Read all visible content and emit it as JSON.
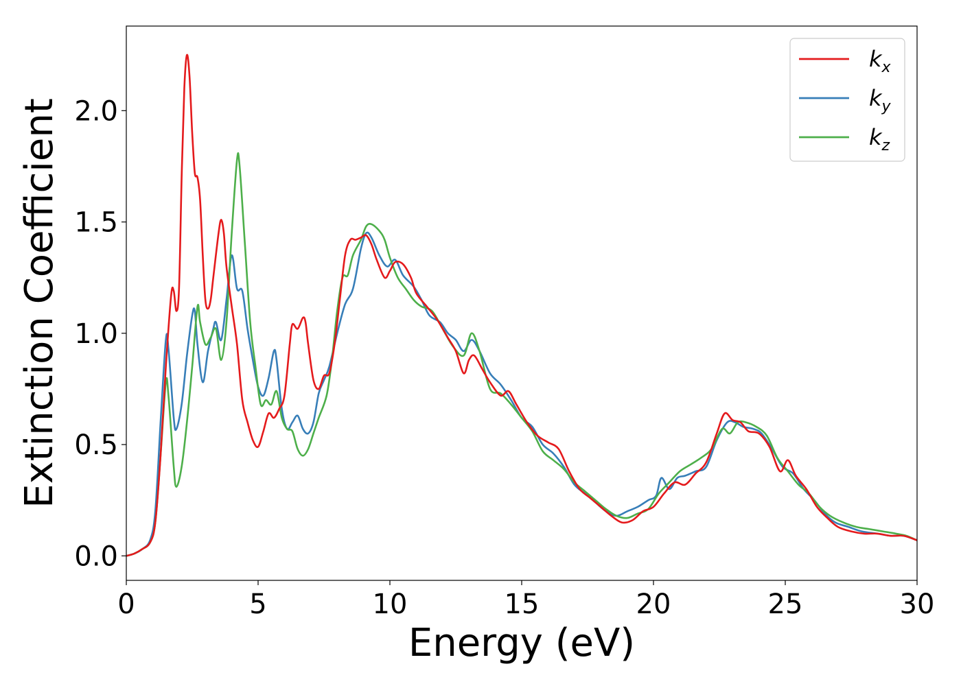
{
  "chart_data": {
    "type": "line",
    "title": "",
    "xlabel": "Energy (eV)",
    "ylabel": "Extinction Coefficient",
    "xlim": [
      0,
      30
    ],
    "ylim": [
      -0.11,
      2.38
    ],
    "xticks": [
      0,
      5,
      10,
      15,
      20,
      25,
      30
    ],
    "xtick_labels": [
      "0",
      "5",
      "10",
      "15",
      "20",
      "25",
      "30"
    ],
    "yticks": [
      0.0,
      0.5,
      1.0,
      1.5,
      2.0
    ],
    "ytick_labels": [
      "0.0",
      "0.5",
      "1.0",
      "1.5",
      "2.0"
    ],
    "grid": false,
    "legend_position": "top-right",
    "series": [
      {
        "name": "k",
        "subscript": "x",
        "color": "#e41a1c",
        "points": [
          [
            0,
            0
          ],
          [
            0.3,
            0.01
          ],
          [
            0.6,
            0.03
          ],
          [
            0.9,
            0.06
          ],
          [
            1.1,
            0.15
          ],
          [
            1.3,
            0.45
          ],
          [
            1.5,
            0.85
          ],
          [
            1.7,
            1.17
          ],
          [
            1.8,
            1.19
          ],
          [
            1.9,
            1.1
          ],
          [
            2.0,
            1.2
          ],
          [
            2.1,
            1.7
          ],
          [
            2.2,
            2.1
          ],
          [
            2.3,
            2.25
          ],
          [
            2.4,
            2.15
          ],
          [
            2.5,
            1.9
          ],
          [
            2.6,
            1.72
          ],
          [
            2.7,
            1.7
          ],
          [
            2.8,
            1.6
          ],
          [
            2.9,
            1.35
          ],
          [
            3.0,
            1.15
          ],
          [
            3.1,
            1.11
          ],
          [
            3.2,
            1.15
          ],
          [
            3.3,
            1.25
          ],
          [
            3.5,
            1.45
          ],
          [
            3.6,
            1.51
          ],
          [
            3.7,
            1.45
          ],
          [
            3.8,
            1.3
          ],
          [
            4.0,
            1.12
          ],
          [
            4.2,
            0.95
          ],
          [
            4.4,
            0.7
          ],
          [
            4.6,
            0.6
          ],
          [
            4.8,
            0.52
          ],
          [
            5.0,
            0.49
          ],
          [
            5.2,
            0.56
          ],
          [
            5.4,
            0.64
          ],
          [
            5.6,
            0.62
          ],
          [
            5.8,
            0.66
          ],
          [
            6.0,
            0.72
          ],
          [
            6.2,
            0.95
          ],
          [
            6.3,
            1.04
          ],
          [
            6.5,
            1.02
          ],
          [
            6.7,
            1.07
          ],
          [
            6.8,
            1.05
          ],
          [
            6.9,
            0.95
          ],
          [
            7.1,
            0.79
          ],
          [
            7.3,
            0.75
          ],
          [
            7.5,
            0.81
          ],
          [
            7.7,
            0.82
          ],
          [
            7.9,
            0.95
          ],
          [
            8.1,
            1.15
          ],
          [
            8.3,
            1.35
          ],
          [
            8.5,
            1.42
          ],
          [
            8.7,
            1.42
          ],
          [
            8.9,
            1.43
          ],
          [
            9.1,
            1.44
          ],
          [
            9.3,
            1.4
          ],
          [
            9.5,
            1.33
          ],
          [
            9.8,
            1.25
          ],
          [
            10.0,
            1.28
          ],
          [
            10.2,
            1.32
          ],
          [
            10.5,
            1.31
          ],
          [
            10.8,
            1.25
          ],
          [
            11.0,
            1.18
          ],
          [
            11.4,
            1.12
          ],
          [
            11.8,
            1.06
          ],
          [
            12.2,
            0.98
          ],
          [
            12.5,
            0.92
          ],
          [
            12.8,
            0.82
          ],
          [
            13.0,
            0.88
          ],
          [
            13.2,
            0.9
          ],
          [
            13.5,
            0.84
          ],
          [
            13.8,
            0.78
          ],
          [
            14.2,
            0.72
          ],
          [
            14.5,
            0.74
          ],
          [
            14.8,
            0.68
          ],
          [
            15.2,
            0.6
          ],
          [
            15.6,
            0.54
          ],
          [
            16.0,
            0.51
          ],
          [
            16.4,
            0.48
          ],
          [
            16.8,
            0.38
          ],
          [
            17.2,
            0.3
          ],
          [
            17.6,
            0.26
          ],
          [
            18.0,
            0.22
          ],
          [
            18.4,
            0.18
          ],
          [
            18.8,
            0.15
          ],
          [
            19.2,
            0.16
          ],
          [
            19.6,
            0.2
          ],
          [
            20.0,
            0.22
          ],
          [
            20.4,
            0.28
          ],
          [
            20.8,
            0.33
          ],
          [
            21.2,
            0.32
          ],
          [
            21.6,
            0.37
          ],
          [
            22.0,
            0.42
          ],
          [
            22.4,
            0.55
          ],
          [
            22.7,
            0.64
          ],
          [
            23.0,
            0.61
          ],
          [
            23.3,
            0.6
          ],
          [
            23.6,
            0.56
          ],
          [
            24.0,
            0.55
          ],
          [
            24.4,
            0.49
          ],
          [
            24.8,
            0.38
          ],
          [
            25.1,
            0.43
          ],
          [
            25.4,
            0.36
          ],
          [
            25.8,
            0.3
          ],
          [
            26.2,
            0.22
          ],
          [
            26.6,
            0.17
          ],
          [
            27.0,
            0.13
          ],
          [
            27.5,
            0.11
          ],
          [
            28.0,
            0.1
          ],
          [
            28.5,
            0.1
          ],
          [
            29.0,
            0.09
          ],
          [
            29.5,
            0.09
          ],
          [
            30.0,
            0.07
          ]
        ]
      },
      {
        "name": "k",
        "subscript": "y",
        "color": "#377eb8",
        "points": [
          [
            0,
            0
          ],
          [
            0.3,
            0.01
          ],
          [
            0.6,
            0.03
          ],
          [
            0.9,
            0.07
          ],
          [
            1.1,
            0.2
          ],
          [
            1.3,
            0.6
          ],
          [
            1.5,
            0.97
          ],
          [
            1.6,
            0.93
          ],
          [
            1.8,
            0.62
          ],
          [
            1.9,
            0.57
          ],
          [
            2.1,
            0.68
          ],
          [
            2.3,
            0.9
          ],
          [
            2.5,
            1.08
          ],
          [
            2.6,
            1.1
          ],
          [
            2.7,
            0.95
          ],
          [
            2.9,
            0.78
          ],
          [
            3.1,
            0.92
          ],
          [
            3.3,
            1.02
          ],
          [
            3.4,
            1.05
          ],
          [
            3.6,
            0.97
          ],
          [
            3.8,
            1.15
          ],
          [
            4.0,
            1.35
          ],
          [
            4.2,
            1.2
          ],
          [
            4.4,
            1.19
          ],
          [
            4.6,
            1.02
          ],
          [
            4.8,
            0.88
          ],
          [
            5.0,
            0.76
          ],
          [
            5.2,
            0.72
          ],
          [
            5.4,
            0.8
          ],
          [
            5.6,
            0.92
          ],
          [
            5.7,
            0.88
          ],
          [
            5.9,
            0.66
          ],
          [
            6.1,
            0.57
          ],
          [
            6.3,
            0.6
          ],
          [
            6.5,
            0.63
          ],
          [
            6.7,
            0.57
          ],
          [
            6.9,
            0.55
          ],
          [
            7.1,
            0.6
          ],
          [
            7.3,
            0.73
          ],
          [
            7.5,
            0.79
          ],
          [
            7.7,
            0.85
          ],
          [
            8.0,
            1.0
          ],
          [
            8.3,
            1.13
          ],
          [
            8.6,
            1.2
          ],
          [
            8.9,
            1.38
          ],
          [
            9.1,
            1.45
          ],
          [
            9.3,
            1.43
          ],
          [
            9.6,
            1.35
          ],
          [
            9.9,
            1.3
          ],
          [
            10.2,
            1.33
          ],
          [
            10.5,
            1.26
          ],
          [
            10.9,
            1.21
          ],
          [
            11.2,
            1.15
          ],
          [
            11.5,
            1.08
          ],
          [
            11.9,
            1.05
          ],
          [
            12.2,
            1.0
          ],
          [
            12.5,
            0.97
          ],
          [
            12.8,
            0.92
          ],
          [
            13.1,
            0.97
          ],
          [
            13.4,
            0.92
          ],
          [
            13.8,
            0.82
          ],
          [
            14.2,
            0.77
          ],
          [
            14.6,
            0.7
          ],
          [
            15.0,
            0.62
          ],
          [
            15.4,
            0.58
          ],
          [
            15.8,
            0.5
          ],
          [
            16.2,
            0.46
          ],
          [
            16.6,
            0.4
          ],
          [
            17.0,
            0.32
          ],
          [
            17.4,
            0.28
          ],
          [
            17.8,
            0.24
          ],
          [
            18.2,
            0.2
          ],
          [
            18.6,
            0.18
          ],
          [
            19.0,
            0.2
          ],
          [
            19.4,
            0.22
          ],
          [
            19.8,
            0.25
          ],
          [
            20.1,
            0.27
          ],
          [
            20.3,
            0.35
          ],
          [
            20.6,
            0.3
          ],
          [
            20.9,
            0.35
          ],
          [
            21.2,
            0.36
          ],
          [
            21.6,
            0.38
          ],
          [
            22.0,
            0.4
          ],
          [
            22.4,
            0.52
          ],
          [
            22.8,
            0.6
          ],
          [
            23.1,
            0.6
          ],
          [
            23.4,
            0.58
          ],
          [
            23.8,
            0.57
          ],
          [
            24.1,
            0.55
          ],
          [
            24.5,
            0.48
          ],
          [
            24.9,
            0.4
          ],
          [
            25.3,
            0.37
          ],
          [
            25.7,
            0.3
          ],
          [
            26.1,
            0.25
          ],
          [
            26.5,
            0.19
          ],
          [
            26.9,
            0.15
          ],
          [
            27.4,
            0.13
          ],
          [
            27.9,
            0.11
          ],
          [
            28.5,
            0.1
          ],
          [
            29.0,
            0.09
          ],
          [
            29.5,
            0.09
          ],
          [
            30.0,
            0.07
          ]
        ]
      },
      {
        "name": "k",
        "subscript": "z",
        "color": "#4daf4a",
        "points": [
          [
            0,
            0
          ],
          [
            0.3,
            0.01
          ],
          [
            0.6,
            0.03
          ],
          [
            0.9,
            0.06
          ],
          [
            1.1,
            0.15
          ],
          [
            1.3,
            0.45
          ],
          [
            1.5,
            0.78
          ],
          [
            1.6,
            0.72
          ],
          [
            1.8,
            0.4
          ],
          [
            1.9,
            0.31
          ],
          [
            2.1,
            0.4
          ],
          [
            2.3,
            0.6
          ],
          [
            2.5,
            0.85
          ],
          [
            2.7,
            1.12
          ],
          [
            2.8,
            1.05
          ],
          [
            3.0,
            0.95
          ],
          [
            3.2,
            0.98
          ],
          [
            3.4,
            1.02
          ],
          [
            3.6,
            0.88
          ],
          [
            3.8,
            1.05
          ],
          [
            4.0,
            1.45
          ],
          [
            4.2,
            1.78
          ],
          [
            4.3,
            1.75
          ],
          [
            4.5,
            1.4
          ],
          [
            4.7,
            1.05
          ],
          [
            4.9,
            0.85
          ],
          [
            5.1,
            0.68
          ],
          [
            5.3,
            0.7
          ],
          [
            5.5,
            0.68
          ],
          [
            5.7,
            0.74
          ],
          [
            5.9,
            0.62
          ],
          [
            6.1,
            0.57
          ],
          [
            6.3,
            0.56
          ],
          [
            6.5,
            0.48
          ],
          [
            6.7,
            0.45
          ],
          [
            6.9,
            0.48
          ],
          [
            7.1,
            0.55
          ],
          [
            7.3,
            0.62
          ],
          [
            7.6,
            0.72
          ],
          [
            7.8,
            0.88
          ],
          [
            8.0,
            1.1
          ],
          [
            8.2,
            1.25
          ],
          [
            8.4,
            1.26
          ],
          [
            8.6,
            1.35
          ],
          [
            8.9,
            1.42
          ],
          [
            9.1,
            1.48
          ],
          [
            9.3,
            1.49
          ],
          [
            9.6,
            1.46
          ],
          [
            9.8,
            1.42
          ],
          [
            10.0,
            1.34
          ],
          [
            10.3,
            1.25
          ],
          [
            10.6,
            1.2
          ],
          [
            10.9,
            1.15
          ],
          [
            11.2,
            1.12
          ],
          [
            11.6,
            1.1
          ],
          [
            12.0,
            1.02
          ],
          [
            12.4,
            0.94
          ],
          [
            12.8,
            0.9
          ],
          [
            13.1,
            1.0
          ],
          [
            13.4,
            0.92
          ],
          [
            13.8,
            0.75
          ],
          [
            14.2,
            0.73
          ],
          [
            14.6,
            0.68
          ],
          [
            15.0,
            0.62
          ],
          [
            15.4,
            0.56
          ],
          [
            15.8,
            0.47
          ],
          [
            16.2,
            0.43
          ],
          [
            16.6,
            0.39
          ],
          [
            17.0,
            0.33
          ],
          [
            17.4,
            0.29
          ],
          [
            17.8,
            0.25
          ],
          [
            18.2,
            0.21
          ],
          [
            18.6,
            0.18
          ],
          [
            19.0,
            0.17
          ],
          [
            19.4,
            0.19
          ],
          [
            19.8,
            0.21
          ],
          [
            20.2,
            0.28
          ],
          [
            20.6,
            0.33
          ],
          [
            21.0,
            0.38
          ],
          [
            21.4,
            0.41
          ],
          [
            21.8,
            0.44
          ],
          [
            22.2,
            0.48
          ],
          [
            22.6,
            0.57
          ],
          [
            22.9,
            0.55
          ],
          [
            23.2,
            0.6
          ],
          [
            23.5,
            0.6
          ],
          [
            23.9,
            0.58
          ],
          [
            24.3,
            0.54
          ],
          [
            24.7,
            0.44
          ],
          [
            25.1,
            0.38
          ],
          [
            25.5,
            0.32
          ],
          [
            25.9,
            0.28
          ],
          [
            26.3,
            0.22
          ],
          [
            26.7,
            0.18
          ],
          [
            27.2,
            0.15
          ],
          [
            27.7,
            0.13
          ],
          [
            28.2,
            0.12
          ],
          [
            28.7,
            0.11
          ],
          [
            29.2,
            0.1
          ],
          [
            29.6,
            0.09
          ],
          [
            30.0,
            0.07
          ]
        ]
      }
    ]
  }
}
